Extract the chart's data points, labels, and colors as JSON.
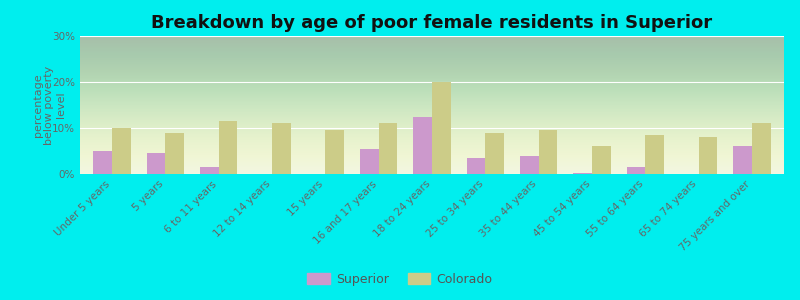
{
  "title": "Breakdown by age of poor female residents in Superior",
  "ylabel": "percentage\nbelow poverty\nlevel",
  "categories": [
    "Under 5 years",
    "5 years",
    "6 to 11 years",
    "12 to 14 years",
    "15 years",
    "16 and 17 years",
    "18 to 24 years",
    "25 to 34 years",
    "35 to 44 years",
    "45 to 54 years",
    "55 to 64 years",
    "65 to 74 years",
    "75 years and over"
  ],
  "superior_values": [
    5.0,
    4.5,
    1.5,
    0.0,
    0.0,
    5.5,
    12.5,
    3.5,
    4.0,
    0.2,
    1.5,
    0.0,
    6.0
  ],
  "colorado_values": [
    10.0,
    9.0,
    11.5,
    11.0,
    9.5,
    11.0,
    20.0,
    9.0,
    9.5,
    6.0,
    8.5,
    8.0,
    11.0
  ],
  "superior_color": "#cc99cc",
  "colorado_color": "#cccc88",
  "background_color": "#00eeee",
  "plot_bg_color": "#eef4e0",
  "ylim": [
    0,
    30
  ],
  "yticks": [
    0,
    10,
    20,
    30
  ],
  "ytick_labels": [
    "0%",
    "10%",
    "20%",
    "30%"
  ],
  "title_fontsize": 13,
  "axis_label_fontsize": 8,
  "tick_fontsize": 7.5,
  "legend_fontsize": 9,
  "bar_width": 0.35
}
